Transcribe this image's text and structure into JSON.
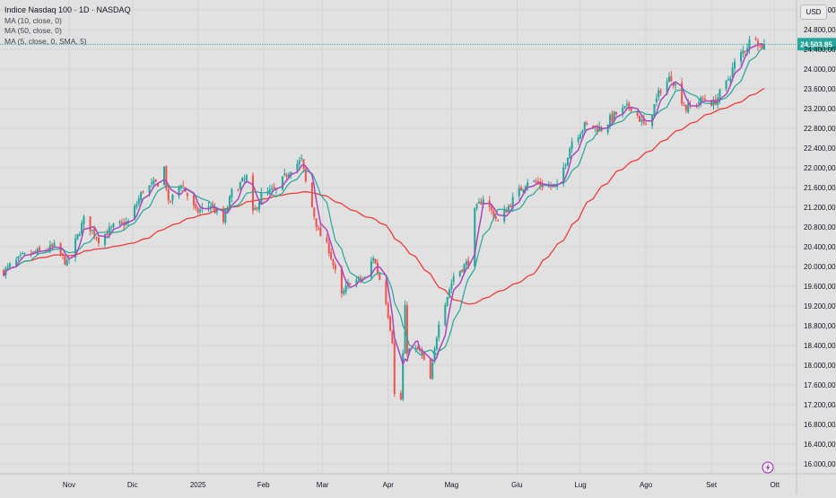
{
  "header": {
    "title": "Indice Nasdaq 100 · 1D · NASDAQ",
    "indicators": [
      "MA (10, close, 0)",
      "MA (50, close, 0)",
      "MA (5, close, 0, SMA, 5)"
    ],
    "currency": "USD",
    "last_price_label": "24.503,85"
  },
  "colors": {
    "background": "#e1e1e1",
    "up": "#26a69a",
    "down": "#ef5350",
    "ma5": "#ab47bc",
    "ma10": "#26a69a",
    "ma50": "#ef3b3b",
    "price_badge": "#26a69a",
    "price_line": "#26a69a"
  },
  "chart_data": {
    "type": "candlestick",
    "ylim": [
      15800,
      25400
    ],
    "last_price": 24503.85,
    "y_ticks": [
      {
        "value": 16000,
        "label": "16.000,00"
      },
      {
        "value": 16400,
        "label": "16.400,00"
      },
      {
        "value": 16800,
        "label": "16.800,00"
      },
      {
        "value": 17200,
        "label": "17.200,00"
      },
      {
        "value": 17600,
        "label": "17.600,00"
      },
      {
        "value": 18000,
        "label": "18.000,00"
      },
      {
        "value": 18400,
        "label": "18.400,00"
      },
      {
        "value": 18800,
        "label": "18.800,00"
      },
      {
        "value": 19200,
        "label": "19.200,00"
      },
      {
        "value": 19600,
        "label": "19.600,00"
      },
      {
        "value": 20000,
        "label": "20.000,00"
      },
      {
        "value": 20400,
        "label": "20.400,00"
      },
      {
        "value": 20800,
        "label": "20.800,00"
      },
      {
        "value": 21200,
        "label": "21.200,00"
      },
      {
        "value": 21600,
        "label": "21.600,00"
      },
      {
        "value": 22000,
        "label": "22.000,00"
      },
      {
        "value": 22400,
        "label": "22.400,00"
      },
      {
        "value": 22800,
        "label": "22.800,00"
      },
      {
        "value": 23200,
        "label": "23.200,00"
      },
      {
        "value": 23600,
        "label": "23.600,00"
      },
      {
        "value": 24000,
        "label": "24.000,00"
      },
      {
        "value": 24400,
        "label": "24.400,00"
      },
      {
        "value": 24800,
        "label": "24.800,00"
      },
      {
        "value": 25200,
        "label": "25.200,00"
      }
    ],
    "x_ticks": [
      {
        "date": "2024-11-01",
        "label": "Nov"
      },
      {
        "date": "2024-12-01",
        "label": "Dic"
      },
      {
        "date": "2025-01-01",
        "label": "2025"
      },
      {
        "date": "2025-02-01",
        "label": "Feb"
      },
      {
        "date": "2025-03-01",
        "label": "Mar"
      },
      {
        "date": "2025-04-01",
        "label": "Apr"
      },
      {
        "date": "2025-05-01",
        "label": "Mag"
      },
      {
        "date": "2025-06-01",
        "label": "Giu"
      },
      {
        "date": "2025-07-01",
        "label": "Lug"
      },
      {
        "date": "2025-08-01",
        "label": "Ago"
      },
      {
        "date": "2025-09-01",
        "label": "Set"
      },
      {
        "date": "2025-10-01",
        "label": "Ott"
      }
    ],
    "date_range": [
      "2024-10-01",
      "2025-09-26"
    ],
    "close_anchors": [
      [
        "2024-10-01",
        19900
      ],
      [
        "2024-10-10",
        20200
      ],
      [
        "2024-10-18",
        20300
      ],
      [
        "2024-10-25",
        20400
      ],
      [
        "2024-10-31",
        20050
      ],
      [
        "2024-11-08",
        20950
      ],
      [
        "2024-11-15",
        20550
      ],
      [
        "2024-11-22",
        20800
      ],
      [
        "2024-11-29",
        20900
      ],
      [
        "2024-12-06",
        21550
      ],
      [
        "2024-12-13",
        21700
      ],
      [
        "2024-12-16",
        22000
      ],
      [
        "2024-12-18",
        21250
      ],
      [
        "2024-12-24",
        21700
      ],
      [
        "2024-12-31",
        21100
      ],
      [
        "2025-01-07",
        21250
      ],
      [
        "2025-01-13",
        20900
      ],
      [
        "2025-01-17",
        21500
      ],
      [
        "2025-01-24",
        21800
      ],
      [
        "2025-01-27",
        21050
      ],
      [
        "2025-01-31",
        21450
      ],
      [
        "2025-02-07",
        21550
      ],
      [
        "2025-02-14",
        22000
      ],
      [
        "2025-02-19",
        22150
      ],
      [
        "2025-02-21",
        21700
      ],
      [
        "2025-02-27",
        20700
      ],
      [
        "2025-03-04",
        20350
      ],
      [
        "2025-03-10",
        19400
      ],
      [
        "2025-03-14",
        19700
      ],
      [
        "2025-03-21",
        19750
      ],
      [
        "2025-03-25",
        20200
      ],
      [
        "2025-03-31",
        19300
      ],
      [
        "2025-04-03",
        18500
      ],
      [
        "2025-04-04",
        17400
      ],
      [
        "2025-04-07",
        17300
      ],
      [
        "2025-04-09",
        19150
      ],
      [
        "2025-04-10",
        18300
      ],
      [
        "2025-04-16",
        18300
      ],
      [
        "2025-04-21",
        17700
      ],
      [
        "2025-04-25",
        18900
      ],
      [
        "2025-05-02",
        19800
      ],
      [
        "2025-05-09",
        20100
      ],
      [
        "2025-05-12",
        21100
      ],
      [
        "2025-05-16",
        21400
      ],
      [
        "2025-05-23",
        20900
      ],
      [
        "2025-05-30",
        21350
      ],
      [
        "2025-06-06",
        21750
      ],
      [
        "2025-06-13",
        21650
      ],
      [
        "2025-06-20",
        21600
      ],
      [
        "2025-06-27",
        22550
      ],
      [
        "2025-07-03",
        22850
      ],
      [
        "2025-07-11",
        22800
      ],
      [
        "2025-07-18",
        23100
      ],
      [
        "2025-07-25",
        23250
      ],
      [
        "2025-08-01",
        22800
      ],
      [
        "2025-08-08",
        23600
      ],
      [
        "2025-08-13",
        23850
      ],
      [
        "2025-08-20",
        23200
      ],
      [
        "2025-08-29",
        23400
      ],
      [
        "2025-09-02",
        23300
      ],
      [
        "2025-09-08",
        23700
      ],
      [
        "2025-09-12",
        24100
      ],
      [
        "2025-09-19",
        24550
      ],
      [
        "2025-09-22",
        24700
      ],
      [
        "2025-09-24",
        24450
      ],
      [
        "2025-09-26",
        24504
      ]
    ],
    "series": [
      {
        "type": "candles",
        "note": "daily OHLC generated deterministically around close_anchors"
      },
      {
        "name": "MA (10, close, 0)",
        "type": "sma",
        "period": 10
      },
      {
        "name": "MA (50, close, 0)",
        "type": "sma",
        "period": 50
      },
      {
        "name": "MA (5, close, 0, SMA, 5)",
        "type": "sma",
        "period": 5
      }
    ]
  }
}
